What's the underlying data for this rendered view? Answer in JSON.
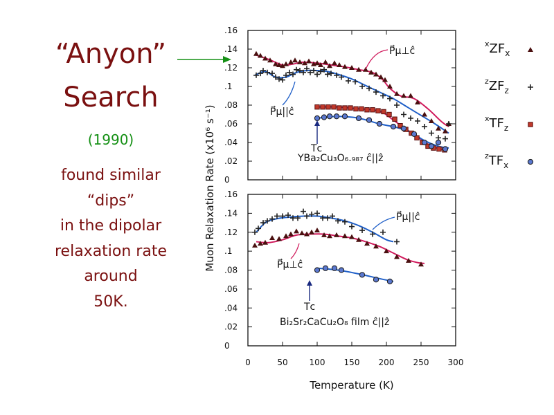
{
  "slide": {
    "title_line1": "“Anyon”",
    "title_line2": "Search",
    "year": "(1990)",
    "body_lines": [
      "found similar",
      "“dips”",
      "in the dipolar",
      "relaxation rate",
      "around",
      "50K."
    ]
  },
  "colors": {
    "title": "#7a1010",
    "year": "#159015",
    "arrow": "#159015",
    "red_fit": "#d01a5c",
    "blue_fit": "#1f5fc8",
    "axis": "#111111"
  },
  "chart_data": [
    {
      "type": "scatter",
      "panel": "top",
      "annotation": "YBa₂Cu₃O₆.₉₈₇  ĉ||ẑ",
      "tc_label": "Tᴄ",
      "label_perp": "P⃗μ⊥ĉ",
      "label_par": "P⃗μ||ĉ",
      "xlim": [
        0,
        300
      ],
      "ylim": [
        0,
        0.16
      ],
      "x_ticks": [
        0,
        50,
        100,
        150,
        200,
        250,
        300
      ],
      "y_ticks": [
        {
          "v": 0,
          "t": "0"
        },
        {
          "v": 0.02,
          "t": ".02"
        },
        {
          "v": 0.04,
          "t": ".04"
        },
        {
          "v": 0.06,
          "t": ".06"
        },
        {
          "v": 0.08,
          "t": ".08"
        },
        {
          "v": 0.1,
          "t": ".1"
        },
        {
          "v": 0.12,
          "t": ".12"
        },
        {
          "v": 0.14,
          "t": ".14"
        },
        {
          "v": 0.16,
          "t": ".16"
        }
      ],
      "series": [
        {
          "name": "xZFx",
          "marker": "triangle",
          "x": [
            12,
            18,
            25,
            32,
            40,
            45,
            50,
            55,
            62,
            68,
            75,
            82,
            88,
            95,
            100,
            105,
            112,
            118,
            125,
            132,
            140,
            150,
            160,
            170,
            178,
            185,
            192,
            198,
            205,
            215,
            225,
            235,
            245,
            255,
            265,
            275,
            285,
            290
          ],
          "y": [
            0.135,
            0.133,
            0.13,
            0.128,
            0.124,
            0.123,
            0.122,
            0.124,
            0.126,
            0.128,
            0.126,
            0.125,
            0.127,
            0.124,
            0.125,
            0.123,
            0.126,
            0.122,
            0.125,
            0.123,
            0.121,
            0.12,
            0.118,
            0.118,
            0.115,
            0.113,
            0.11,
            0.107,
            0.1,
            0.092,
            0.09,
            0.09,
            0.083,
            0.07,
            0.063,
            0.055,
            0.052,
            0.06
          ]
        },
        {
          "name": "zZFz",
          "marker": "plus",
          "x": [
            12,
            18,
            22,
            28,
            35,
            40,
            45,
            50,
            55,
            60,
            65,
            70,
            75,
            80,
            85,
            90,
            95,
            100,
            105,
            110,
            115,
            120,
            128,
            135,
            145,
            155,
            165,
            175,
            185,
            195,
            205,
            215,
            225,
            235,
            245,
            255,
            265,
            275,
            285,
            290
          ],
          "y": [
            0.112,
            0.114,
            0.117,
            0.115,
            0.114,
            0.11,
            0.108,
            0.107,
            0.112,
            0.115,
            0.113,
            0.118,
            0.117,
            0.115,
            0.119,
            0.115,
            0.117,
            0.113,
            0.116,
            0.118,
            0.113,
            0.114,
            0.112,
            0.11,
            0.106,
            0.105,
            0.1,
            0.098,
            0.094,
            0.09,
            0.087,
            0.08,
            0.07,
            0.066,
            0.063,
            0.057,
            0.05,
            0.045,
            0.044,
            0.06
          ]
        },
        {
          "name": "xTFz",
          "marker": "square",
          "x": [
            100,
            108,
            116,
            124,
            132,
            140,
            148,
            156,
            164,
            172,
            180,
            188,
            196,
            204,
            212,
            220,
            228,
            236,
            244,
            252,
            260,
            268,
            276,
            284
          ],
          "y": [
            0.078,
            0.078,
            0.078,
            0.078,
            0.077,
            0.077,
            0.077,
            0.076,
            0.076,
            0.075,
            0.075,
            0.074,
            0.073,
            0.07,
            0.065,
            0.058,
            0.054,
            0.05,
            0.045,
            0.04,
            0.036,
            0.034,
            0.033,
            0.032
          ]
        },
        {
          "name": "zTFx",
          "marker": "circle",
          "x": [
            100,
            110,
            118,
            128,
            140,
            160,
            175,
            190,
            210,
            225,
            240,
            255,
            265,
            275,
            285
          ],
          "y": [
            0.066,
            0.067,
            0.068,
            0.068,
            0.068,
            0.066,
            0.064,
            0.06,
            0.057,
            0.055,
            0.049,
            0.04,
            0.036,
            0.04,
            0.033
          ]
        }
      ],
      "fits": [
        {
          "name": "fit-perp",
          "color": "red",
          "x": [
            10,
            30,
            50,
            65,
            80,
            100,
            120,
            140,
            160,
            175,
            185,
            195,
            205,
            220,
            240,
            260,
            280,
            290
          ],
          "y": [
            0.134,
            0.129,
            0.123,
            0.124,
            0.126,
            0.125,
            0.123,
            0.121,
            0.118,
            0.116,
            0.113,
            0.107,
            0.098,
            0.09,
            0.087,
            0.076,
            0.062,
            0.057
          ]
        },
        {
          "name": "fit-par",
          "color": "blue",
          "x": [
            10,
            25,
            40,
            55,
            70,
            85,
            100,
            115,
            130,
            150,
            170,
            190,
            210,
            230,
            250,
            270,
            290
          ],
          "y": [
            0.112,
            0.116,
            0.11,
            0.11,
            0.115,
            0.117,
            0.117,
            0.116,
            0.113,
            0.108,
            0.101,
            0.094,
            0.087,
            0.078,
            0.069,
            0.06,
            0.05
          ]
        },
        {
          "name": "fit-xtfz",
          "color": "red",
          "x": [
            100,
            130,
            160,
            180,
            195,
            210,
            225,
            245,
            265,
            285
          ],
          "y": [
            0.078,
            0.078,
            0.076,
            0.075,
            0.072,
            0.064,
            0.056,
            0.046,
            0.036,
            0.032
          ]
        },
        {
          "name": "fit-ztfx",
          "color": "blue",
          "x": [
            100,
            130,
            160,
            190,
            215,
            235,
            255,
            275,
            290
          ],
          "y": [
            0.066,
            0.068,
            0.066,
            0.06,
            0.056,
            0.051,
            0.042,
            0.036,
            0.034
          ]
        }
      ]
    },
    {
      "type": "scatter",
      "panel": "bottom",
      "annotation": "Bi₂Sr₂CaCu₂O₈  film  ĉ||ẑ",
      "tc_label": "Tᴄ",
      "label_perp": "P⃗μ⊥ĉ",
      "label_par": "P⃗μ||ĉ",
      "xlim": [
        0,
        300
      ],
      "ylim": [
        0,
        0.16
      ],
      "x_ticks": [
        0,
        50,
        100,
        150,
        200,
        250,
        300
      ],
      "x_tick_labels": [
        "0",
        "50",
        "100",
        "150",
        "200",
        "250",
        "300"
      ],
      "xlabel": "Temperature (K)",
      "shared_ylabel": "Muon Relaxation Rate (x10⁶ s⁻¹)",
      "y_ticks": [
        {
          "v": 0,
          "t": "0"
        },
        {
          "v": 0.02,
          "t": ".02"
        },
        {
          "v": 0.04,
          "t": ".04"
        },
        {
          "v": 0.06,
          "t": ".06"
        },
        {
          "v": 0.08,
          "t": ".08"
        },
        {
          "v": 0.1,
          "t": ".1"
        },
        {
          "v": 0.12,
          "t": ".12"
        },
        {
          "v": 0.14,
          "t": ".14"
        },
        {
          "v": 0.16,
          "t": ".16"
        }
      ],
      "series": [
        {
          "name": "xZFx",
          "marker": "triangle",
          "x": [
            10,
            18,
            25,
            35,
            45,
            55,
            62,
            70,
            78,
            85,
            92,
            100,
            110,
            118,
            128,
            140,
            150,
            160,
            172,
            185,
            200,
            215,
            232,
            250
          ],
          "y": [
            0.106,
            0.108,
            0.109,
            0.114,
            0.113,
            0.116,
            0.118,
            0.121,
            0.119,
            0.118,
            0.12,
            0.122,
            0.117,
            0.116,
            0.117,
            0.116,
            0.115,
            0.112,
            0.108,
            0.105,
            0.1,
            0.094,
            0.09,
            0.086
          ]
        },
        {
          "name": "zZFz",
          "marker": "plus",
          "x": [
            10,
            15,
            22,
            28,
            35,
            42,
            50,
            58,
            65,
            72,
            80,
            85,
            92,
            100,
            108,
            115,
            122,
            130,
            140,
            150,
            165,
            180,
            195,
            215
          ],
          "y": [
            0.12,
            0.124,
            0.13,
            0.132,
            0.134,
            0.137,
            0.137,
            0.138,
            0.135,
            0.135,
            0.142,
            0.137,
            0.139,
            0.14,
            0.135,
            0.135,
            0.137,
            0.132,
            0.131,
            0.126,
            0.122,
            0.118,
            0.12,
            0.11
          ]
        },
        {
          "name": "zTFx",
          "marker": "circle",
          "x": [
            100,
            112,
            125,
            135,
            165,
            185,
            205
          ],
          "y": [
            0.08,
            0.082,
            0.082,
            0.08,
            0.075,
            0.07,
            0.068
          ]
        }
      ],
      "fits": [
        {
          "name": "fit-par",
          "color": "blue",
          "x": [
            12,
            25,
            40,
            60,
            80,
            100,
            120,
            140,
            160,
            180,
            200,
            210
          ],
          "y": [
            0.12,
            0.13,
            0.134,
            0.136,
            0.137,
            0.137,
            0.135,
            0.132,
            0.127,
            0.12,
            0.112,
            0.11
          ]
        },
        {
          "name": "fit-perp",
          "color": "red",
          "x": [
            12,
            30,
            50,
            70,
            90,
            110,
            130,
            150,
            170,
            190,
            210,
            230,
            245,
            255
          ],
          "y": [
            0.11,
            0.109,
            0.112,
            0.117,
            0.118,
            0.118,
            0.116,
            0.114,
            0.11,
            0.105,
            0.098,
            0.091,
            0.088,
            0.087
          ]
        },
        {
          "name": "fit-ztfx",
          "color": "blue",
          "x": [
            100,
            130,
            160,
            190,
            210
          ],
          "y": [
            0.082,
            0.08,
            0.076,
            0.071,
            0.068
          ]
        }
      ]
    }
  ],
  "legend": [
    {
      "pre": "x",
      "main": "ZF",
      "sub": "x",
      "marker": "triangle"
    },
    {
      "pre": "z",
      "main": "ZF",
      "sub": "z",
      "marker": "plus"
    },
    {
      "pre": "x",
      "main": "TF",
      "sub": "z",
      "marker": "square"
    },
    {
      "pre": "z",
      "main": "TF",
      "sub": "x",
      "marker": "circle"
    }
  ]
}
